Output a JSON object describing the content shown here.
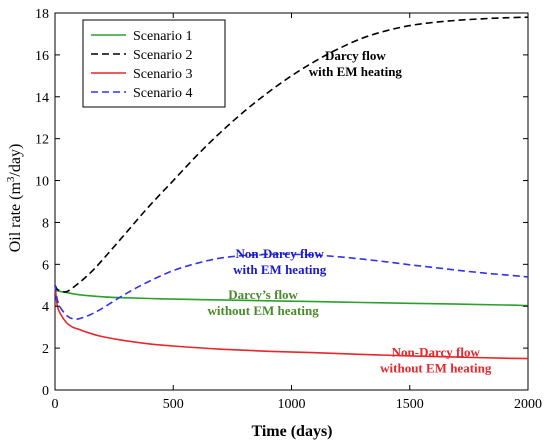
{
  "chart_data": {
    "type": "line",
    "xlabel": "Time (days)",
    "ylabel_parts": {
      "before": "Oil rate (m",
      "sup": "3",
      "after": "/day)"
    },
    "xlim": [
      0,
      2000
    ],
    "ylim": [
      0,
      18
    ],
    "xticks": [
      0,
      500,
      1000,
      1500,
      2000
    ],
    "yticks": [
      0,
      2,
      4,
      6,
      8,
      10,
      12,
      14,
      16,
      18
    ],
    "grid": false,
    "legend_position": "top-left",
    "series": [
      {
        "name": "Scenario 1",
        "color": "#2ca02c",
        "dash": "solid",
        "x": [
          0,
          10,
          25,
          50,
          100,
          200,
          300,
          400,
          500,
          700,
          900,
          1100,
          1300,
          1500,
          1700,
          1900,
          2000
        ],
        "y": [
          5.0,
          4.75,
          4.7,
          4.65,
          4.55,
          4.45,
          4.4,
          4.37,
          4.34,
          4.3,
          4.26,
          4.22,
          4.18,
          4.14,
          4.1,
          4.06,
          4.03
        ]
      },
      {
        "name": "Scenario 2",
        "color": "#000000",
        "dash": "dashed",
        "x": [
          0,
          10,
          25,
          50,
          100,
          150,
          200,
          300,
          400,
          500,
          600,
          700,
          800,
          900,
          1000,
          1100,
          1200,
          1300,
          1400,
          1500,
          1600,
          1700,
          1800,
          1900,
          2000
        ],
        "y": [
          5.0,
          4.8,
          4.75,
          4.7,
          5.1,
          5.6,
          6.2,
          7.5,
          8.8,
          10.0,
          11.2,
          12.3,
          13.3,
          14.2,
          15.0,
          15.7,
          16.3,
          16.8,
          17.15,
          17.4,
          17.55,
          17.65,
          17.72,
          17.77,
          17.8
        ]
      },
      {
        "name": "Scenario 3",
        "color": "#e8262b",
        "dash": "solid",
        "x": [
          0,
          10,
          25,
          50,
          75,
          100,
          150,
          200,
          300,
          400,
          500,
          700,
          900,
          1100,
          1300,
          1500,
          1700,
          1900,
          2000
        ],
        "y": [
          5.0,
          4.0,
          3.6,
          3.2,
          3.0,
          2.9,
          2.7,
          2.55,
          2.35,
          2.2,
          2.1,
          1.95,
          1.85,
          1.78,
          1.7,
          1.63,
          1.57,
          1.52,
          1.5
        ]
      },
      {
        "name": "Scenario 4",
        "color": "#3333ee",
        "dash": "dashed",
        "x": [
          0,
          10,
          25,
          50,
          75,
          100,
          150,
          200,
          300,
          400,
          500,
          600,
          700,
          800,
          900,
          1000,
          1100,
          1200,
          1300,
          1400,
          1500,
          1600,
          1700,
          1800,
          1900,
          2000
        ],
        "y": [
          5.0,
          4.3,
          3.9,
          3.55,
          3.4,
          3.4,
          3.6,
          3.9,
          4.6,
          5.2,
          5.7,
          6.05,
          6.3,
          6.42,
          6.48,
          6.48,
          6.44,
          6.36,
          6.25,
          6.12,
          5.98,
          5.85,
          5.72,
          5.6,
          5.5,
          5.4
        ]
      }
    ],
    "annotations": [
      {
        "lines": [
          "Darcy flow",
          "with EM heating"
        ],
        "color": "#000000",
        "x": 1270,
        "y": 15.75
      },
      {
        "lines": [
          "Non-Darcy flow",
          "with EM heating"
        ],
        "color": "#1a1acc",
        "x": 950,
        "y": 6.3
      },
      {
        "lines": [
          "Darcy’s flow",
          "without EM heating"
        ],
        "color": "#4a8a2a",
        "x": 880,
        "y": 4.35
      },
      {
        "lines": [
          "Non-Darcy flow",
          "without EM heating"
        ],
        "color": "#e8262b",
        "x": 1610,
        "y": 1.6
      }
    ]
  }
}
